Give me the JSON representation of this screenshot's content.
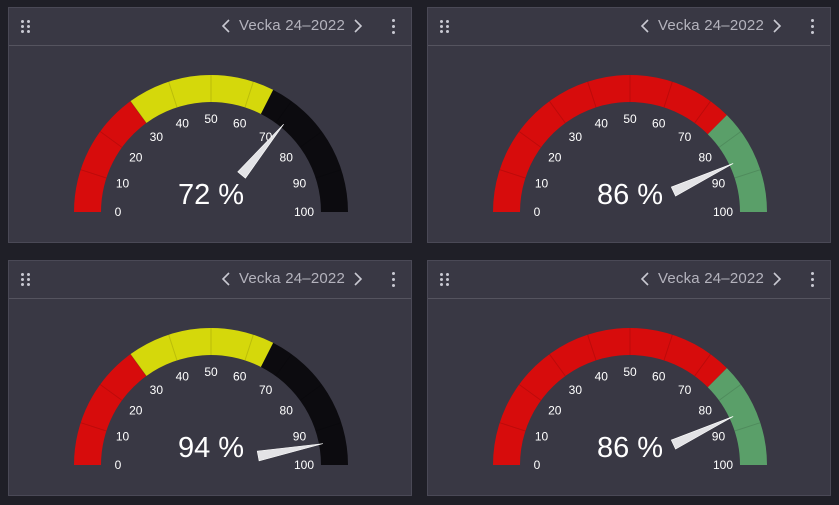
{
  "panels": [
    {
      "title": "Vecka 24–2022",
      "value": 72,
      "value_label": "72 %",
      "scheme": "red-yellow-black"
    },
    {
      "title": "Vecka 24–2022",
      "value": 86,
      "value_label": "86 %",
      "scheme": "red-green"
    },
    {
      "title": "Vecka 24–2022",
      "value": 94,
      "value_label": "94 %",
      "scheme": "red-yellow-black"
    },
    {
      "title": "Vecka 24–2022",
      "value": 86,
      "value_label": "86 %",
      "scheme": "red-green"
    }
  ],
  "ticks": [
    "0",
    "10",
    "20",
    "30",
    "40",
    "50",
    "60",
    "70",
    "80",
    "90",
    "100"
  ],
  "gauge_range": [
    0,
    100
  ],
  "bands": {
    "red-yellow-black": [
      {
        "from": 0,
        "to": 30,
        "color": "#d70c0c"
      },
      {
        "from": 30,
        "to": 65,
        "color": "#d5d80b"
      },
      {
        "from": 65,
        "to": 100,
        "color": "#0c0b0f"
      }
    ],
    "red-green": [
      {
        "from": 0,
        "to": 75,
        "color": "#d70c0c"
      },
      {
        "from": 75,
        "to": 100,
        "color": "#5a9f69"
      }
    ]
  },
  "colors": {
    "panel_bg": "#393844",
    "page_bg": "#1f1f27",
    "tick_text": "#ffffff",
    "value_text": "#ffffff",
    "needle": "#e3e3e6",
    "title_text": "#b4b3bd"
  },
  "icons": {
    "drag": "drag-handle-icon",
    "prev": "chevron-left-icon",
    "next": "chevron-right-icon",
    "menu": "kebab-menu-icon"
  }
}
